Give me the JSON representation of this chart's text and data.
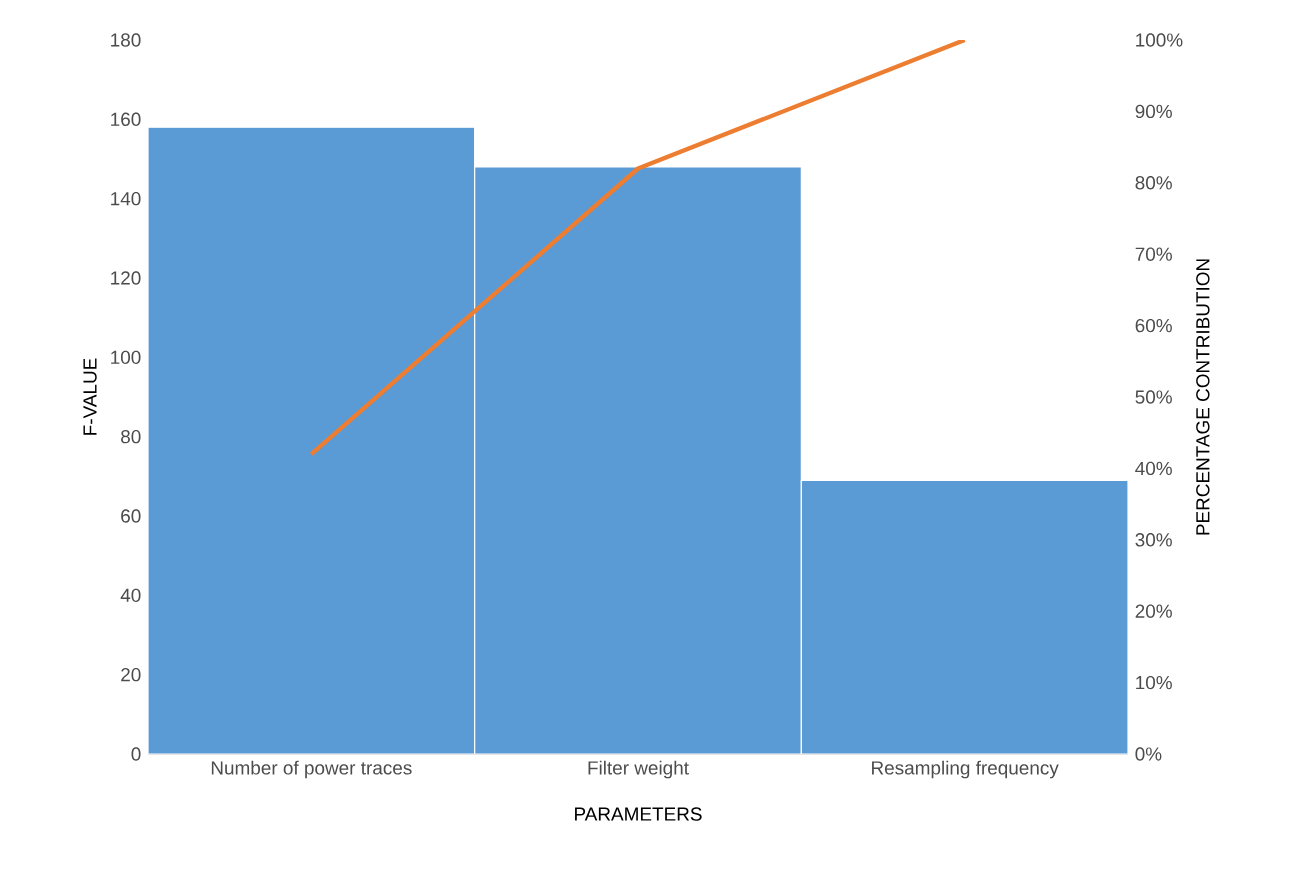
{
  "chart_data": {
    "type": "bar",
    "xlabel": "PARAMETERS",
    "ylabel": "F-VALUE",
    "y2label": "PERCENTAGE CONTRIBUTION",
    "categories": [
      "Number of power traces",
      "Filter weight",
      "Resampling frequency"
    ],
    "series": [
      {
        "color": "#5b9bd5",
        "values": [
          158,
          148,
          69
        ]
      },
      {
        "type": "line",
        "axis": "y2",
        "color": "#ed7d31",
        "values": [
          42,
          82,
          100
        ]
      }
    ],
    "ylim": [
      0,
      180
    ],
    "yticks": [
      0,
      20,
      40,
      60,
      80,
      100,
      120,
      140,
      160,
      180
    ],
    "y2lim": [
      0,
      100
    ],
    "y2ticks": [
      {
        "value": 0,
        "label": "0%"
      },
      {
        "value": 10,
        "label": "10%"
      },
      {
        "value": 20,
        "label": "20%"
      },
      {
        "value": 30,
        "label": "30%"
      },
      {
        "value": 40,
        "label": "40%"
      },
      {
        "value": 50,
        "label": "50%"
      },
      {
        "value": 60,
        "label": "60%"
      },
      {
        "value": 70,
        "label": "70%"
      },
      {
        "value": 80,
        "label": "80%"
      },
      {
        "value": 90,
        "label": "90%"
      },
      {
        "value": 100,
        "label": "100%"
      }
    ],
    "grid": false
  }
}
